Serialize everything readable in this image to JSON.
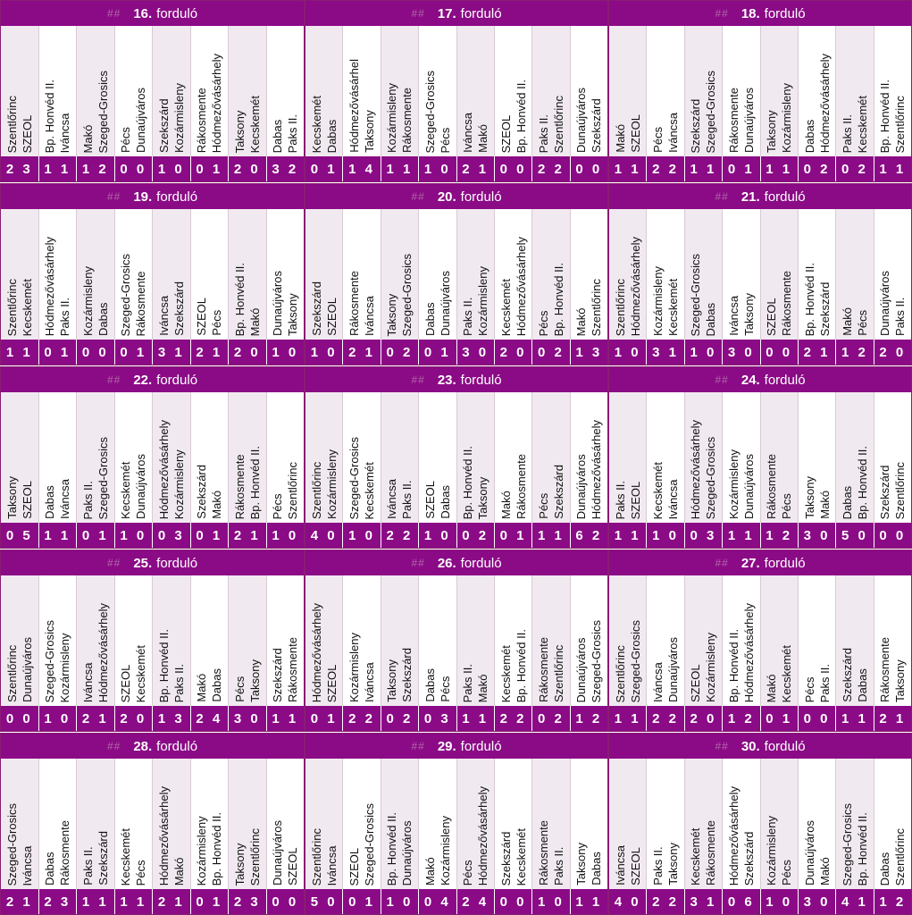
{
  "colors": {
    "accent": "#8b0a86",
    "alt_row": "#f1e9f0"
  },
  "header_hash": "##",
  "round_label": "forduló",
  "rounds": [
    {
      "number": "16.",
      "matches": [
        {
          "home": "Szentlőrinc",
          "away": "SZEOL",
          "score": "2 3"
        },
        {
          "home": "Bp. Honvéd II.",
          "away": "Iváncsa",
          "score": "1 1"
        },
        {
          "home": "Makó",
          "away": "Szeged-Grosics",
          "score": "1 2"
        },
        {
          "home": "Pécs",
          "away": "Dunaújváros",
          "score": "0 0"
        },
        {
          "home": "Szekszárd",
          "away": "Kozármisleny",
          "score": "1 0"
        },
        {
          "home": "Rákosmente",
          "away": "Hódmezővásárhely",
          "score": "0 1"
        },
        {
          "home": "Taksony",
          "away": "Kecskemét",
          "score": "2 0"
        },
        {
          "home": "Dabas",
          "away": "Paks II.",
          "score": "3 2"
        }
      ]
    },
    {
      "number": "17.",
      "matches": [
        {
          "home": "Kecskemét",
          "away": "Dabas",
          "score": "0 1"
        },
        {
          "home": "Hódmezővásárhel",
          "away": "Taksony",
          "score": "1 4"
        },
        {
          "home": "Kozármisleny",
          "away": "Rákosmente",
          "score": "1 1"
        },
        {
          "home": "Szeged-Grosics",
          "away": "Pécs",
          "score": "1 0"
        },
        {
          "home": "Iváncsa",
          "away": "Makó",
          "score": "2 1"
        },
        {
          "home": "SZEOL",
          "away": "Bp. Honvéd II.",
          "score": "0 0"
        },
        {
          "home": "Paks II.",
          "away": "Szentlőrinc",
          "score": "2 2"
        },
        {
          "home": "Dunaújváros",
          "away": "Szekszárd",
          "score": "0 0"
        }
      ]
    },
    {
      "number": "18.",
      "matches": [
        {
          "home": "Makó",
          "away": "SZEOL",
          "score": "1 1"
        },
        {
          "home": "Pécs",
          "away": "Iváncsa",
          "score": "2 2"
        },
        {
          "home": "Szekszárd",
          "away": "Szeged-Grosics",
          "score": "1 1"
        },
        {
          "home": "Rákosmente",
          "away": "Dunaújváros",
          "score": "0 1"
        },
        {
          "home": "Taksony",
          "away": "Kozármisleny",
          "score": "1 1"
        },
        {
          "home": "Dabas",
          "away": "Hódmezővásárhely",
          "score": "0 2"
        },
        {
          "home": "Paks II.",
          "away": "Kecskemét",
          "score": "0 2"
        },
        {
          "home": "Bp. Honvéd II.",
          "away": "Szentlőrinc",
          "score": "1 1"
        }
      ]
    },
    {
      "number": "19.",
      "matches": [
        {
          "home": "Szentlőrinc",
          "away": "Kecskemét",
          "score": "1 1"
        },
        {
          "home": "Hódmezővásárhely",
          "away": "Paks II.",
          "score": "0 1"
        },
        {
          "home": "Kozármisleny",
          "away": "Dabas",
          "score": "0 0"
        },
        {
          "home": "Szeged-Grosics",
          "away": "Rákosmente",
          "score": "0 1"
        },
        {
          "home": "Iváncsa",
          "away": "Szekszárd",
          "score": "3 1"
        },
        {
          "home": "SZEOL",
          "away": "Pécs",
          "score": "2 1"
        },
        {
          "home": "Bp. Honvéd II.",
          "away": "Makó",
          "score": "2 0"
        },
        {
          "home": "Dunaújváros",
          "away": "Taksony",
          "score": "1 0"
        }
      ]
    },
    {
      "number": "20.",
      "matches": [
        {
          "home": "Szekszárd",
          "away": "SZEOL",
          "score": "1 0"
        },
        {
          "home": "Rákosmente",
          "away": "Iváncsa",
          "score": "2 1"
        },
        {
          "home": "Taksony",
          "away": "Szeged-Grosics",
          "score": "0 2"
        },
        {
          "home": "Dabas",
          "away": "Dunaújváros",
          "score": "0 1"
        },
        {
          "home": "Paks II.",
          "away": "Kozármisleny",
          "score": "3 0"
        },
        {
          "home": "Kecskemét",
          "away": "Hódmezővásárhely",
          "score": "2 0"
        },
        {
          "home": "Pécs",
          "away": "Bp. Honvéd II.",
          "score": "0 2"
        },
        {
          "home": "Makó",
          "away": "Szentlőrinc",
          "score": "1 3"
        }
      ]
    },
    {
      "number": "21.",
      "matches": [
        {
          "home": "Szentlőrinc",
          "away": "Hódmezővásárhely",
          "score": "1 0"
        },
        {
          "home": "Kozármisleny",
          "away": "Kecskemét",
          "score": "3 1"
        },
        {
          "home": "Szeged-Grosics",
          "away": "Dabas",
          "score": "1 0"
        },
        {
          "home": "Iváncsa",
          "away": "Taksony",
          "score": "3 0"
        },
        {
          "home": "SZEOL",
          "away": "Rákosmente",
          "score": "0 0"
        },
        {
          "home": "Bp. Honvéd II.",
          "away": "Szekszárd",
          "score": "2 1"
        },
        {
          "home": "Makó",
          "away": "Pécs",
          "score": "1 2"
        },
        {
          "home": "Dunaújváros",
          "away": "Paks II.",
          "score": "2 0"
        }
      ]
    },
    {
      "number": "22.",
      "matches": [
        {
          "home": "Taksony",
          "away": "SZEOL",
          "score": "0 5"
        },
        {
          "home": "Dabas",
          "away": "Iváncsa",
          "score": "1 1"
        },
        {
          "home": "Paks II.",
          "away": "Szeged-Grosics",
          "score": "0 1"
        },
        {
          "home": "Kecskemét",
          "away": "Dunaújváros",
          "score": "1 0"
        },
        {
          "home": "Hódmezővásárhely",
          "away": "Kozármisleny",
          "score": "0 3"
        },
        {
          "home": "Szekszárd",
          "away": "Makó",
          "score": "0 1"
        },
        {
          "home": "Rákosmente",
          "away": "Bp. Honvéd II.",
          "score": "2 1"
        },
        {
          "home": "Pécs",
          "away": "Szentlőrinc",
          "score": "1 0"
        }
      ]
    },
    {
      "number": "23.",
      "matches": [
        {
          "home": "Szentlőrinc",
          "away": "Kozármisleny",
          "score": "4 0"
        },
        {
          "home": "Szeged-Grosics",
          "away": "Kecskemét",
          "score": "1 0"
        },
        {
          "home": "Iváncsa",
          "away": "Paks II.",
          "score": "2 2"
        },
        {
          "home": "SZEOL",
          "away": "Dabas",
          "score": "1 0"
        },
        {
          "home": "Bp. Honvéd II.",
          "away": "Taksony",
          "score": "0 2"
        },
        {
          "home": "Makó",
          "away": "Rákosmente",
          "score": "0 1"
        },
        {
          "home": "Pécs",
          "away": "Szekszárd",
          "score": "1 1"
        },
        {
          "home": "Dunaújváros",
          "away": "Hódmezővásárhely",
          "score": "6 2"
        }
      ]
    },
    {
      "number": "24.",
      "matches": [
        {
          "home": "Paks II.",
          "away": "SZEOL",
          "score": "1 1"
        },
        {
          "home": "Kecskemét",
          "away": "Iváncsa",
          "score": "1 0"
        },
        {
          "home": "Hódmezővásárhely",
          "away": "Szeged-Grosics",
          "score": "0 3"
        },
        {
          "home": "Kozármisleny",
          "away": "Dunaújváros",
          "score": "1 1"
        },
        {
          "home": "Rákosmente",
          "away": "Pécs",
          "score": "1 2"
        },
        {
          "home": "Taksony",
          "away": "Makó",
          "score": "3 0"
        },
        {
          "home": "Dabas",
          "away": "Bp. Honvéd II.",
          "score": "5 0"
        },
        {
          "home": "Szekszárd",
          "away": "Szentlőrinc",
          "score": "0 0"
        }
      ]
    },
    {
      "number": "25.",
      "matches": [
        {
          "home": "Szentlőrinc",
          "away": "Dunaújváros",
          "score": "0 0"
        },
        {
          "home": "Szeged-Grosics",
          "away": "Kozármisleny",
          "score": "1 0"
        },
        {
          "home": "Iváncsa",
          "away": "Hódmezővásárhely",
          "score": "2 1"
        },
        {
          "home": "SZEOL",
          "away": "Kecskemét",
          "score": "2 0"
        },
        {
          "home": "Bp. Honvéd II.",
          "away": "Paks II.",
          "score": "1 3"
        },
        {
          "home": "Makó",
          "away": "Dabas",
          "score": "2 4"
        },
        {
          "home": "Pécs",
          "away": "Taksony",
          "score": "3 0"
        },
        {
          "home": "Szekszárd",
          "away": "Rákosmente",
          "score": "1 1"
        }
      ]
    },
    {
      "number": "26.",
      "matches": [
        {
          "home": "Hódmezővásárhely",
          "away": "SZEOL",
          "score": "0 1"
        },
        {
          "home": "Kozármisleny",
          "away": "Iváncsa",
          "score": "2 2"
        },
        {
          "home": "Taksony",
          "away": "Szekszárd",
          "score": "0 2"
        },
        {
          "home": "Dabas",
          "away": "Pécs",
          "score": "0 3"
        },
        {
          "home": "Paks II.",
          "away": "Makó",
          "score": "1 1"
        },
        {
          "home": "Kecskemét",
          "away": "Bp. Honvéd II.",
          "score": "2 2"
        },
        {
          "home": "Rákosmente",
          "away": "Szentlőrinc",
          "score": "0 2"
        },
        {
          "home": "Dunaújváros",
          "away": "Szeged-Grosics",
          "score": "1 2"
        }
      ]
    },
    {
      "number": "27.",
      "matches": [
        {
          "home": "Szentlőrinc",
          "away": "Szeged-Grosics",
          "score": "1 1"
        },
        {
          "home": "Iváncsa",
          "away": "Dunaújváros",
          "score": "2 2"
        },
        {
          "home": "SZEOL",
          "away": "Kozármisleny",
          "score": "2 0"
        },
        {
          "home": "Bp. Honvéd II.",
          "away": "Hódmezővásárhely",
          "score": "1 2"
        },
        {
          "home": "Makó",
          "away": "Kecskemét",
          "score": "0 1"
        },
        {
          "home": "Pécs",
          "away": "Paks II.",
          "score": "0 0"
        },
        {
          "home": "Szekszárd",
          "away": "Dabas",
          "score": "1 1"
        },
        {
          "home": "Rákosmente",
          "away": "Taksony",
          "score": "2 1"
        }
      ]
    },
    {
      "number": "28.",
      "matches": [
        {
          "home": "Szeged-Grosics",
          "away": "Iváncsa",
          "score": "2 1"
        },
        {
          "home": "Dabas",
          "away": "Rákosmente",
          "score": "2 3"
        },
        {
          "home": "Paks II.",
          "away": "Szekszárd",
          "score": "1 1"
        },
        {
          "home": "Kecskemét",
          "away": "Pécs",
          "score": "1 1"
        },
        {
          "home": "Hódmezővásárhely",
          "away": "Makó",
          "score": "2 1"
        },
        {
          "home": "Kozármisleny",
          "away": "Bp. Honvéd II.",
          "score": "0 1"
        },
        {
          "home": "Taksony",
          "away": "Szentlőrinc",
          "score": "2 3"
        },
        {
          "home": "Dunaújváros",
          "away": "SZEOL",
          "score": "0 0"
        }
      ]
    },
    {
      "number": "29.",
      "matches": [
        {
          "home": "Szentlőrinc",
          "away": "Iváncsa",
          "score": "5 0"
        },
        {
          "home": "SZEOL",
          "away": "Szeged-Grosics",
          "score": "0 1"
        },
        {
          "home": "Bp. Honvéd II.",
          "away": "Dunaújváros",
          "score": "1 0"
        },
        {
          "home": "Makó",
          "away": "Kozármisleny",
          "score": "0 4"
        },
        {
          "home": "Pécs",
          "away": "Hódmezővásárhely",
          "score": "2 4"
        },
        {
          "home": "Szekszárd",
          "away": "Kecskemét",
          "score": "0 0"
        },
        {
          "home": "Rákosmente",
          "away": "Paks II.",
          "score": "1 0"
        },
        {
          "home": "Taksony",
          "away": "Dabas",
          "score": "1 1"
        }
      ]
    },
    {
      "number": "30.",
      "matches": [
        {
          "home": "Iváncsa",
          "away": "SZEOL",
          "score": "4 0"
        },
        {
          "home": "Paks II.",
          "away": "Taksony",
          "score": "2 2"
        },
        {
          "home": "Kecskemét",
          "away": "Rákosmente",
          "score": "3 1"
        },
        {
          "home": "Hódmezővásárhely",
          "away": "Szekszárd",
          "score": "0 6"
        },
        {
          "home": "Kozármisleny",
          "away": "Pécs",
          "score": "1 0"
        },
        {
          "home": "Dunaújváros",
          "away": "Makó",
          "score": "3 0"
        },
        {
          "home": "Szeged-Grosics",
          "away": "Bp. Honvéd II.",
          "score": "4 1"
        },
        {
          "home": "Dabas",
          "away": "Szentlőrinc",
          "score": "1 2"
        }
      ]
    }
  ]
}
